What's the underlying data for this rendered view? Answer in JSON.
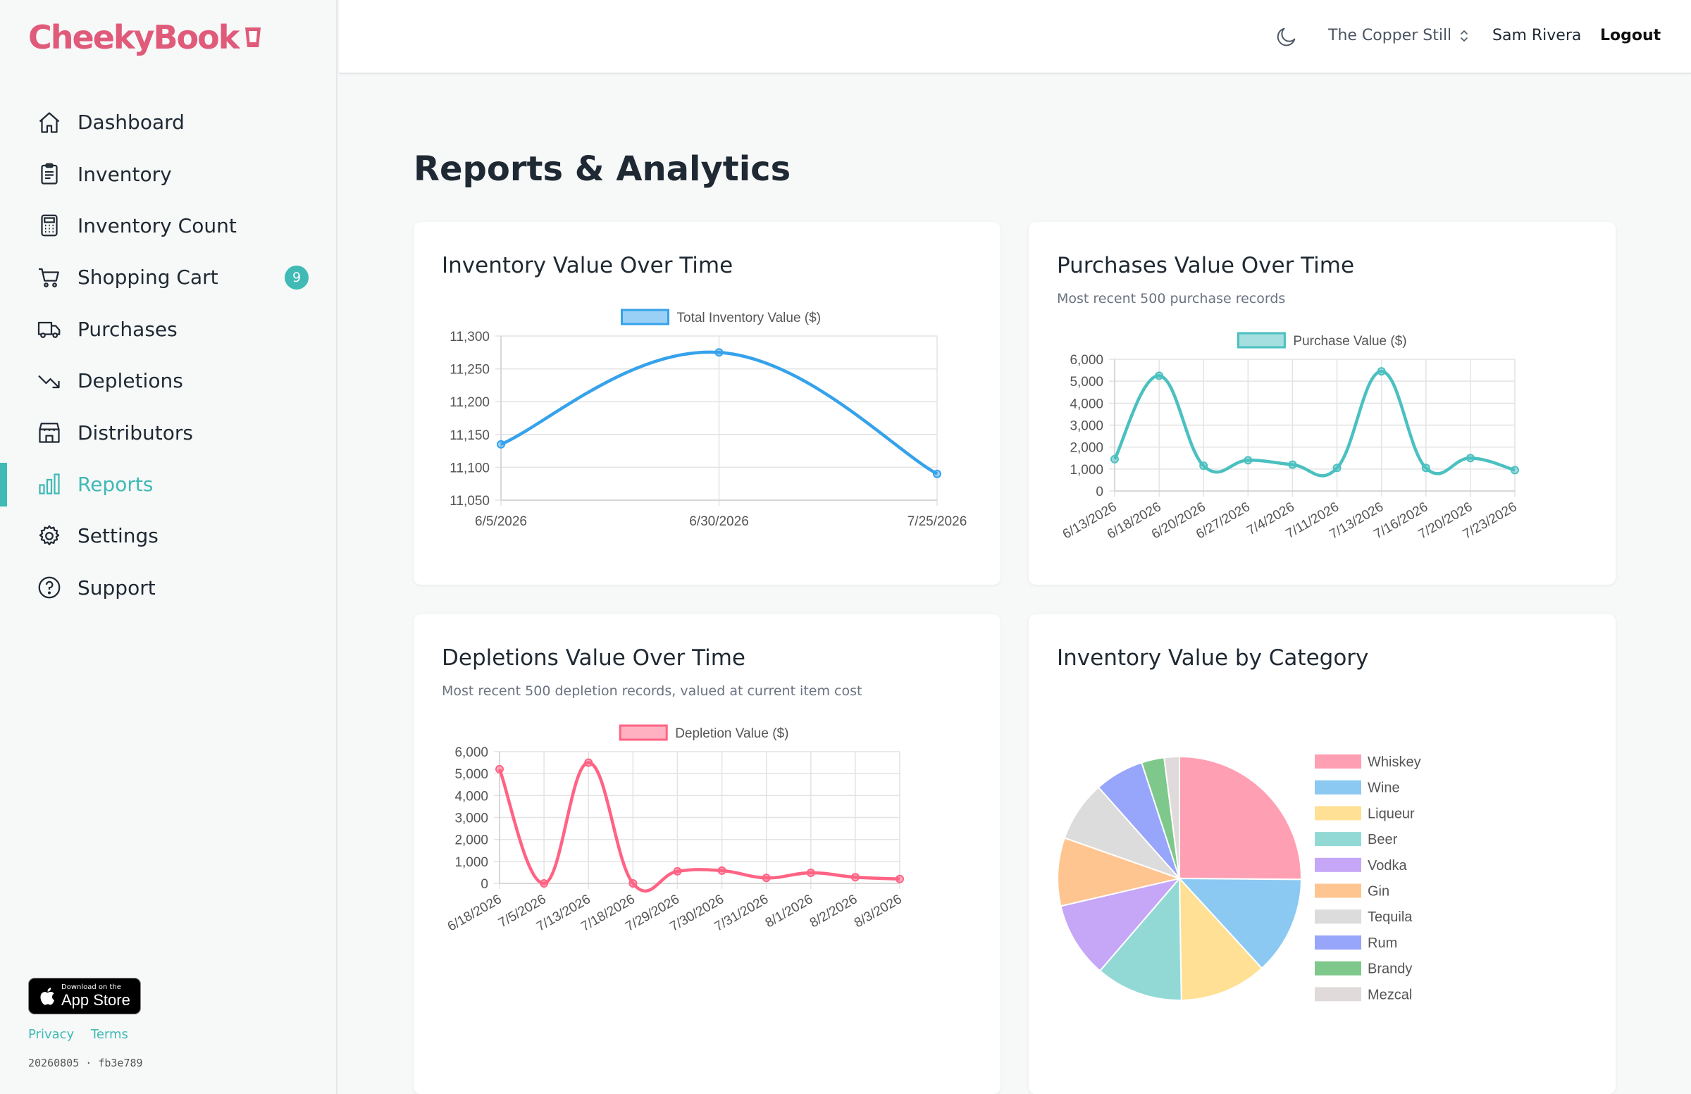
{
  "brand": {
    "name": "CheekyBook"
  },
  "sidebar": {
    "items": [
      {
        "label": "Dashboard",
        "icon": "home-icon"
      },
      {
        "label": "Inventory",
        "icon": "clipboard-icon"
      },
      {
        "label": "Inventory Count",
        "icon": "calculator-icon"
      },
      {
        "label": "Shopping Cart",
        "icon": "cart-icon",
        "badge": "9"
      },
      {
        "label": "Purchases",
        "icon": "truck-icon"
      },
      {
        "label": "Depletions",
        "icon": "trending-down-icon"
      },
      {
        "label": "Distributors",
        "icon": "storefront-icon"
      },
      {
        "label": "Reports",
        "icon": "bar-chart-icon",
        "active": true
      },
      {
        "label": "Settings",
        "icon": "gear-icon"
      },
      {
        "label": "Support",
        "icon": "help-circle-icon"
      }
    ],
    "appstore": {
      "small": "Download on the",
      "big": "App Store"
    },
    "privacy": "Privacy",
    "terms": "Terms",
    "build": "20260805 · fb3e789"
  },
  "topbar": {
    "venue": "The Copper Still",
    "user": "Sam Rivera",
    "logout": "Logout"
  },
  "page": {
    "title": "Reports & Analytics"
  },
  "colors": {
    "accent": "#3fbab5",
    "brand": "#e05a7a",
    "blue": "#36a2eb",
    "teal": "#4bc0c0",
    "pink": "#ff6384"
  },
  "cards": {
    "inventory": {
      "title": "Inventory Value Over Time",
      "subtitle": ""
    },
    "purchases": {
      "title": "Purchases Value Over Time",
      "subtitle": "Most recent 500 purchase records"
    },
    "depletions": {
      "title": "Depletions Value Over Time",
      "subtitle": "Most recent 500 depletion records, valued at current item cost"
    },
    "category": {
      "title": "Inventory Value by Category",
      "subtitle": ""
    }
  },
  "chart_data": [
    {
      "type": "line",
      "title": "Inventory Value Over Time",
      "series": [
        {
          "name": "Total Inventory Value ($)",
          "color": "#36a2eb",
          "values": [
            11135,
            11275,
            11090
          ]
        }
      ],
      "categories": [
        "6/5/2026",
        "6/30/2026",
        "7/25/2026"
      ],
      "ylim": [
        11050,
        11300
      ],
      "yticks": [
        11050,
        11100,
        11150,
        11200,
        11250,
        11300
      ],
      "ytick_labels": [
        "11,050",
        "11,100",
        "11,150",
        "11,200",
        "11,250",
        "11,300"
      ],
      "grid": true,
      "legend": "top"
    },
    {
      "type": "line",
      "title": "Purchases Value Over Time",
      "series": [
        {
          "name": "Purchase Value ($)",
          "color": "#4bc0c0",
          "values": [
            1450,
            5250,
            1150,
            1400,
            1200,
            1050,
            5450,
            1050,
            1500,
            950
          ]
        }
      ],
      "categories": [
        "6/13/2026",
        "6/18/2026",
        "6/20/2026",
        "6/27/2026",
        "7/4/2026",
        "7/11/2026",
        "7/13/2026",
        "7/16/2026",
        "7/20/2026",
        "7/23/2026"
      ],
      "ylim": [
        0,
        6000
      ],
      "yticks": [
        0,
        1000,
        2000,
        3000,
        4000,
        5000,
        6000
      ],
      "ytick_labels": [
        "0",
        "1,000",
        "2,000",
        "3,000",
        "4,000",
        "5,000",
        "6,000"
      ],
      "grid": true,
      "legend": "top"
    },
    {
      "type": "line",
      "title": "Depletions Value Over Time",
      "series": [
        {
          "name": "Depletion Value ($)",
          "color": "#ff6384",
          "values": [
            5200,
            0,
            5500,
            0,
            550,
            580,
            250,
            480,
            280,
            200
          ]
        }
      ],
      "categories": [
        "6/18/2026",
        "7/5/2026",
        "7/13/2026",
        "7/18/2026",
        "7/29/2026",
        "7/30/2026",
        "7/31/2026",
        "8/1/2026",
        "8/2/2026",
        "8/3/2026"
      ],
      "ylim": [
        0,
        6000
      ],
      "yticks": [
        0,
        1000,
        2000,
        3000,
        4000,
        5000,
        6000
      ],
      "ytick_labels": [
        "0",
        "1,000",
        "2,000",
        "3,000",
        "4,000",
        "5,000",
        "6,000"
      ],
      "grid": true,
      "legend": "top"
    },
    {
      "type": "pie",
      "title": "Inventory Value by Category",
      "categories": [
        "Whiskey",
        "Wine",
        "Liqueur",
        "Beer",
        "Vodka",
        "Gin",
        "Tequila",
        "Rum",
        "Brandy",
        "Mezcal"
      ],
      "values": [
        25,
        13,
        11.5,
        11.5,
        10,
        9,
        8,
        6.5,
        3,
        2
      ],
      "colors": [
        "#ff9fb4",
        "#8cc9f2",
        "#ffe094",
        "#92d9d6",
        "#c5a6f7",
        "#ffc590",
        "#dcdcdc",
        "#97a5fa",
        "#7fc88b",
        "#e0dada"
      ],
      "legend": "right"
    }
  ]
}
